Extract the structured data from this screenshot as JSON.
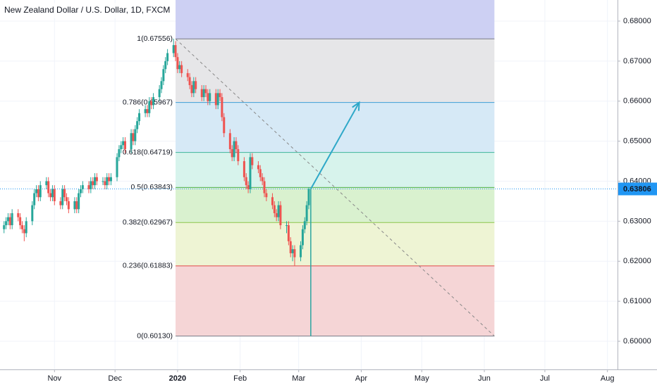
{
  "chart_data": {
    "type": "candlestick",
    "title": "New Zealand Dollar / U.S. Dollar, 1D, FXCM",
    "xlim": [
      -88,
      218
    ],
    "ylim": [
      0.59297,
      0.68527
    ],
    "xticks": [
      {
        "value": -61,
        "label": "Nov"
      },
      {
        "value": -31,
        "label": "Dec"
      },
      {
        "value": 0,
        "label": "2020"
      },
      {
        "value": 31,
        "label": "Feb"
      },
      {
        "value": 60,
        "label": "Mar"
      },
      {
        "value": 91,
        "label": "Apr"
      },
      {
        "value": 121,
        "label": "May"
      },
      {
        "value": 152,
        "label": "Jun"
      },
      {
        "value": 182,
        "label": "Jul"
      },
      {
        "value": 213,
        "label": "Aug"
      }
    ],
    "yticks": [
      {
        "value": 0.6,
        "label": "0.60000"
      },
      {
        "value": 0.61,
        "label": "0.61000"
      },
      {
        "value": 0.62,
        "label": "0.62000"
      },
      {
        "value": 0.63,
        "label": "0.63000"
      },
      {
        "value": 0.64,
        "label": "0.64000"
      },
      {
        "value": 0.65,
        "label": "0.65000"
      },
      {
        "value": 0.66,
        "label": "0.66000"
      },
      {
        "value": 0.67,
        "label": "0.67000"
      },
      {
        "value": 0.68,
        "label": "0.68000"
      }
    ],
    "grid": true,
    "up_color": "#26a69a",
    "down_color": "#ef5350",
    "x": [
      -86,
      -85,
      -84,
      -83,
      -82,
      -79,
      -78,
      -77,
      -76,
      -75,
      -72,
      -71,
      -70,
      -69,
      -68,
      -65,
      -64,
      -63,
      -62,
      -61,
      -58,
      -57,
      -56,
      -55,
      -54,
      -51,
      -50,
      -49,
      -48,
      -47,
      -44,
      -43,
      -42,
      -41,
      -40,
      -37,
      -36,
      -35,
      -34,
      -33,
      -30,
      -29,
      -28,
      -27,
      -26,
      -23,
      -22,
      -21,
      -20,
      -19,
      -16,
      -15,
      -14,
      -13,
      -12,
      -9,
      -8,
      -7,
      -6,
      -5,
      -2,
      -1,
      0,
      1,
      2,
      5,
      6,
      7,
      8,
      9,
      12,
      13,
      14,
      15,
      16,
      19,
      20,
      21,
      22,
      23,
      26,
      27,
      28,
      29,
      30,
      33,
      34,
      35,
      36,
      37,
      40,
      41,
      42,
      43,
      44,
      47,
      48,
      49,
      50,
      51,
      54,
      55,
      56,
      57,
      58,
      61,
      62,
      63,
      64,
      65
    ],
    "candles": [
      [
        0.628,
        0.63,
        0.627,
        0.629
      ],
      [
        0.629,
        0.631,
        0.628,
        0.63
      ],
      [
        0.63,
        0.632,
        0.629,
        0.631
      ],
      [
        0.631,
        0.632,
        0.628,
        0.629
      ],
      [
        0.629,
        0.633,
        0.628,
        0.632
      ],
      [
        0.632,
        0.633,
        0.63,
        0.631
      ],
      [
        0.631,
        0.632,
        0.628,
        0.629
      ],
      [
        0.629,
        0.63,
        0.627,
        0.628
      ],
      [
        0.628,
        0.629,
        0.625,
        0.627
      ],
      [
        0.627,
        0.631,
        0.626,
        0.63
      ],
      [
        0.63,
        0.635,
        0.629,
        0.634
      ],
      [
        0.634,
        0.638,
        0.633,
        0.637
      ],
      [
        0.637,
        0.639,
        0.636,
        0.638
      ],
      [
        0.638,
        0.639,
        0.635,
        0.636
      ],
      [
        0.636,
        0.64,
        0.635,
        0.639
      ],
      [
        0.639,
        0.641,
        0.638,
        0.64
      ],
      [
        0.64,
        0.641,
        0.636,
        0.637
      ],
      [
        0.637,
        0.638,
        0.635,
        0.636
      ],
      [
        0.636,
        0.639,
        0.635,
        0.638
      ],
      [
        0.638,
        0.639,
        0.634,
        0.635
      ],
      [
        0.635,
        0.636,
        0.633,
        0.634
      ],
      [
        0.634,
        0.639,
        0.633,
        0.638
      ],
      [
        0.638,
        0.639,
        0.635,
        0.636
      ],
      [
        0.636,
        0.637,
        0.634,
        0.635
      ],
      [
        0.635,
        0.636,
        0.632,
        0.633
      ],
      [
        0.633,
        0.636,
        0.632,
        0.635
      ],
      [
        0.635,
        0.636,
        0.632,
        0.633
      ],
      [
        0.633,
        0.638,
        0.632,
        0.637
      ],
      [
        0.637,
        0.639,
        0.636,
        0.638
      ],
      [
        0.638,
        0.64,
        0.637,
        0.639
      ],
      [
        0.639,
        0.64,
        0.637,
        0.638
      ],
      [
        0.638,
        0.641,
        0.637,
        0.64
      ],
      [
        0.64,
        0.641,
        0.638,
        0.639
      ],
      [
        0.639,
        0.642,
        0.638,
        0.641
      ],
      [
        0.641,
        0.642,
        0.639,
        0.64
      ],
      [
        0.64,
        0.641,
        0.639,
        0.64
      ],
      [
        0.64,
        0.641,
        0.638,
        0.639
      ],
      [
        0.639,
        0.642,
        0.638,
        0.641
      ],
      [
        0.641,
        0.642,
        0.639,
        0.64
      ],
      [
        0.64,
        0.642,
        0.639,
        0.641
      ],
      [
        0.641,
        0.647,
        0.64,
        0.646
      ],
      [
        0.646,
        0.649,
        0.645,
        0.648
      ],
      [
        0.648,
        0.65,
        0.647,
        0.649
      ],
      [
        0.649,
        0.651,
        0.648,
        0.65
      ],
      [
        0.65,
        0.651,
        0.647,
        0.648
      ],
      [
        0.648,
        0.653,
        0.647,
        0.652
      ],
      [
        0.652,
        0.653,
        0.649,
        0.65
      ],
      [
        0.65,
        0.654,
        0.649,
        0.653
      ],
      [
        0.653,
        0.656,
        0.652,
        0.655
      ],
      [
        0.655,
        0.658,
        0.654,
        0.657
      ],
      [
        0.657,
        0.659,
        0.656,
        0.658
      ],
      [
        0.658,
        0.659,
        0.656,
        0.657
      ],
      [
        0.657,
        0.661,
        0.656,
        0.66
      ],
      [
        0.66,
        0.661,
        0.658,
        0.659
      ],
      [
        0.659,
        0.662,
        0.658,
        0.661
      ],
      [
        0.661,
        0.664,
        0.66,
        0.663
      ],
      [
        0.663,
        0.666,
        0.662,
        0.665
      ],
      [
        0.665,
        0.669,
        0.664,
        0.668
      ],
      [
        0.668,
        0.671,
        0.667,
        0.67
      ],
      [
        0.67,
        0.673,
        0.669,
        0.672
      ],
      [
        0.672,
        0.6756,
        0.671,
        0.674
      ],
      [
        0.674,
        0.675,
        0.67,
        0.671
      ],
      [
        0.671,
        0.672,
        0.667,
        0.668
      ],
      [
        0.668,
        0.67,
        0.667,
        0.669
      ],
      [
        0.669,
        0.67,
        0.666,
        0.667
      ],
      [
        0.667,
        0.668,
        0.665,
        0.666
      ],
      [
        0.666,
        0.667,
        0.663,
        0.664
      ],
      [
        0.664,
        0.665,
        0.661,
        0.662
      ],
      [
        0.662,
        0.666,
        0.661,
        0.665
      ],
      [
        0.665,
        0.666,
        0.662,
        0.663
      ],
      [
        0.663,
        0.664,
        0.66,
        0.661
      ],
      [
        0.661,
        0.664,
        0.66,
        0.663
      ],
      [
        0.663,
        0.664,
        0.661,
        0.662
      ],
      [
        0.662,
        0.663,
        0.659,
        0.66
      ],
      [
        0.66,
        0.663,
        0.659,
        0.662
      ],
      [
        0.662,
        0.663,
        0.658,
        0.659
      ],
      [
        0.659,
        0.663,
        0.658,
        0.662
      ],
      [
        0.662,
        0.663,
        0.66,
        0.661
      ],
      [
        0.661,
        0.662,
        0.655,
        0.656
      ],
      [
        0.656,
        0.657,
        0.651,
        0.652
      ],
      [
        0.652,
        0.653,
        0.647,
        0.648
      ],
      [
        0.648,
        0.649,
        0.645,
        0.646
      ],
      [
        0.646,
        0.651,
        0.645,
        0.65
      ],
      [
        0.65,
        0.651,
        0.647,
        0.648
      ],
      [
        0.648,
        0.649,
        0.644,
        0.645
      ],
      [
        0.645,
        0.646,
        0.64,
        0.641
      ],
      [
        0.641,
        0.642,
        0.638,
        0.639
      ],
      [
        0.639,
        0.64,
        0.637,
        0.638
      ],
      [
        0.638,
        0.647,
        0.637,
        0.646
      ],
      [
        0.646,
        0.647,
        0.643,
        0.644
      ],
      [
        0.644,
        0.645,
        0.642,
        0.643
      ],
      [
        0.643,
        0.644,
        0.64,
        0.641
      ],
      [
        0.641,
        0.642,
        0.639,
        0.64
      ],
      [
        0.64,
        0.641,
        0.636,
        0.637
      ],
      [
        0.637,
        0.638,
        0.635,
        0.636
      ],
      [
        0.636,
        0.637,
        0.633,
        0.634
      ],
      [
        0.634,
        0.635,
        0.631,
        0.632
      ],
      [
        0.632,
        0.633,
        0.63,
        0.631
      ],
      [
        0.631,
        0.635,
        0.63,
        0.634
      ],
      [
        0.634,
        0.635,
        0.628,
        0.629
      ],
      [
        0.629,
        0.63,
        0.627,
        0.629
      ],
      [
        0.629,
        0.63,
        0.624,
        0.625
      ],
      [
        0.625,
        0.626,
        0.621,
        0.622
      ],
      [
        0.622,
        0.624,
        0.62,
        0.623
      ],
      [
        0.623,
        0.624,
        0.6188,
        0.621
      ],
      [
        0.621,
        0.625,
        0.62,
        0.624
      ],
      [
        0.624,
        0.629,
        0.623,
        0.628
      ],
      [
        0.628,
        0.631,
        0.627,
        0.63
      ],
      [
        0.63,
        0.635,
        0.629,
        0.634
      ],
      [
        0.634,
        0.6385,
        0.633,
        0.63806
      ]
    ],
    "fib_x": [
      -1,
      157
    ],
    "fib_top_fill": "#cdd0f3",
    "fib_levels": [
      {
        "label": "1(0.67556)",
        "value": 0.67556,
        "color": "#787b86",
        "fill": "#e6e6e8"
      },
      {
        "label": "0.786(0.65967)",
        "value": 0.65967,
        "color": "#3d9ed6",
        "fill": "#d6e9f6"
      },
      {
        "label": "0.618(0.64719)",
        "value": 0.64719,
        "color": "#3cb49a",
        "fill": "#d7f3ec"
      },
      {
        "label": "0.5(0.63843)",
        "value": 0.63843,
        "color": "#4caf50",
        "fill": "#d9f1cf"
      },
      {
        "label": "0.382(0.62967)",
        "value": 0.62967,
        "color": "#8bc34a",
        "fill": "#eef4d4"
      },
      {
        "label": "0.236(0.61883)",
        "value": 0.61883,
        "color": "#e04848",
        "fill": "#f5d5d6"
      },
      {
        "label": "0(0.60130)",
        "value": 0.6013,
        "color": "#787b86",
        "fill": "#ffffff"
      }
    ],
    "trend_line": {
      "x": [
        -1,
        157
      ],
      "y": [
        0.67556,
        0.6013
      ],
      "color": "#888888"
    },
    "vertical_line": {
      "x": 66,
      "y": [
        0.63806,
        0.6013
      ],
      "color": "#2aa5a0"
    },
    "arrow": {
      "x": [
        66,
        90
      ],
      "y": [
        0.63806,
        0.65967
      ],
      "color": "#2ea8c8"
    },
    "current_price": 0.63806,
    "current_price_color": "#2196f3"
  }
}
